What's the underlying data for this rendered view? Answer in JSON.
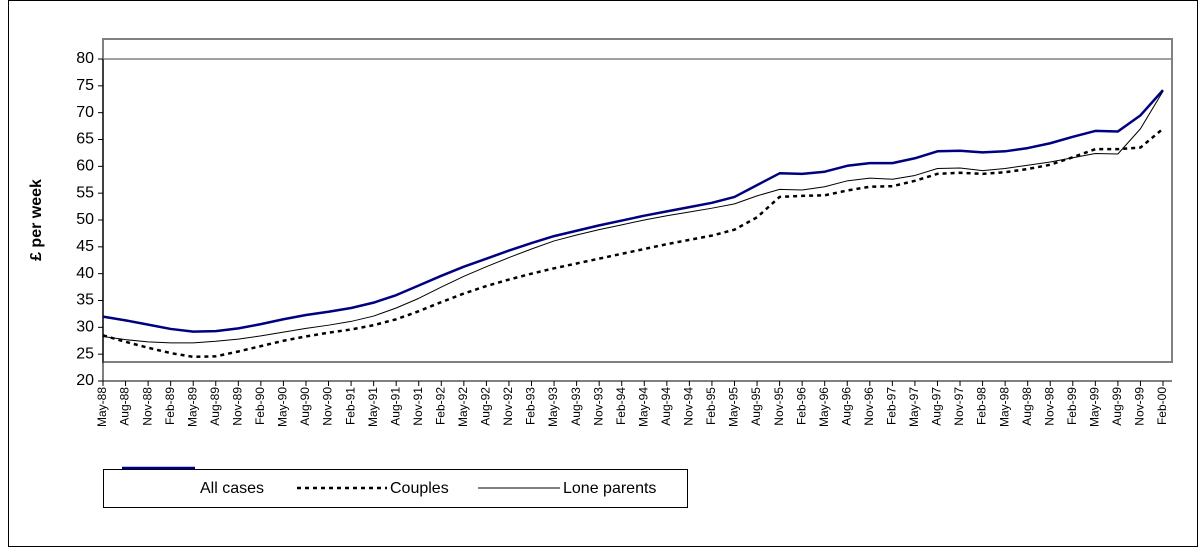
{
  "chart_data": {
    "type": "line",
    "y_label": "£ per week",
    "categories": [
      "May-88",
      "Aug-88",
      "Nov-88",
      "Feb-89",
      "May-89",
      "Aug-89",
      "Nov-89",
      "Feb-90",
      "May-90",
      "Aug-90",
      "Nov-90",
      "Feb-91",
      "May-91",
      "Aug-91",
      "Nov-91",
      "Feb-92",
      "May-92",
      "Aug-92",
      "Nov-92",
      "Feb-93",
      "May-93",
      "Aug-93",
      "Nov-93",
      "Feb-94",
      "May-94",
      "Aug-94",
      "Nov-94",
      "Feb-95",
      "May-95",
      "Aug-95",
      "Nov-95",
      "Feb-96",
      "May-96",
      "Aug-96",
      "Nov-96",
      "Feb-97",
      "May-97",
      "Aug-97",
      "Nov-97",
      "Feb-98",
      "May-98",
      "Aug-98",
      "Nov-98",
      "Feb-99",
      "May-99",
      "Aug-99",
      "Nov-99",
      "Feb-00"
    ],
    "series": [
      {
        "name": "All cases",
        "color": "#000080",
        "dash": false,
        "width": 2.5,
        "values": [
          32,
          31.3,
          30.5,
          29.7,
          29.2,
          29.3,
          29.8,
          30.6,
          31.5,
          32.3,
          32.9,
          33.6,
          34.6,
          36,
          37.8,
          39.6,
          41.3,
          42.8,
          44.3,
          45.7,
          47,
          48,
          49,
          49.9,
          50.8,
          51.6,
          52.4,
          53.2,
          54.3,
          56.5,
          58.7,
          58.6,
          59,
          60.1,
          60.6,
          60.6,
          61.5,
          62.8,
          62.9,
          62.6,
          62.8,
          63.4,
          64.3,
          65.5,
          66.6,
          66.5,
          69.5,
          74.2
        ]
      },
      {
        "name": "Couples",
        "color": "#000000",
        "dash": true,
        "width": 2.5,
        "values": [
          28.5,
          27.3,
          26.2,
          25.2,
          24.5,
          24.6,
          25.5,
          26.5,
          27.5,
          28.3,
          29,
          29.6,
          30.4,
          31.5,
          33,
          34.7,
          36.3,
          37.7,
          38.9,
          40,
          41,
          41.9,
          42.8,
          43.7,
          44.6,
          45.5,
          46.3,
          47.1,
          48.2,
          50.5,
          54.3,
          54.5,
          54.6,
          55.5,
          56.2,
          56.3,
          57.3,
          58.6,
          58.8,
          58.6,
          58.9,
          59.5,
          60.3,
          61.7,
          63.2,
          63.2,
          63.5,
          67
        ]
      },
      {
        "name": "Lone parents",
        "color": "#000000",
        "dash": false,
        "width": 1,
        "values": [
          28.3,
          27.7,
          27.3,
          27.1,
          27.1,
          27.4,
          27.8,
          28.4,
          29.1,
          29.8,
          30.4,
          31.1,
          32.1,
          33.6,
          35.4,
          37.5,
          39.5,
          41.3,
          43,
          44.6,
          46.1,
          47.2,
          48.2,
          49.1,
          50,
          50.8,
          51.5,
          52.2,
          53,
          54.5,
          55.7,
          55.6,
          56.2,
          57.3,
          57.8,
          57.6,
          58.3,
          59.6,
          59.7,
          59.2,
          59.6,
          60.2,
          60.8,
          61.6,
          62.4,
          62.3,
          67,
          74
        ]
      }
    ],
    "ylim": [
      20,
      80
    ],
    "yticks": [
      20,
      25,
      30,
      35,
      40,
      45,
      50,
      55,
      60,
      65,
      70,
      75,
      80
    ]
  }
}
